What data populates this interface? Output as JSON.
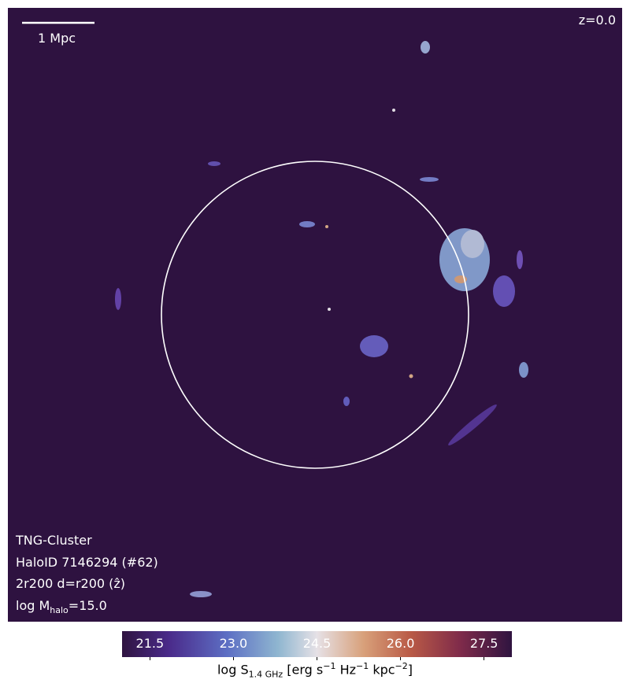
{
  "panel": {
    "scale_bar_label": "1 Mpc",
    "redshift": "z=0.0",
    "info": [
      "TNG-Cluster",
      "HaloID 7146294 (#62)",
      "2r200 d=r200 (ẑ)"
    ],
    "mass_label": [
      "log M",
      "halo",
      "=15.0"
    ]
  },
  "colorbar": {
    "lim": [
      21,
      28
    ],
    "ticks": [
      21.5,
      {
        "value": 23,
        "label": "23.0"
      },
      24.5,
      {
        "value": 26,
        "label": "26.0"
      },
      27.5
    ],
    "label": [
      "log S",
      "1.4 GHz",
      "[erg s",
      "−1",
      "Hz",
      "−1",
      "kpc",
      "−2",
      "]"
    ]
  }
}
